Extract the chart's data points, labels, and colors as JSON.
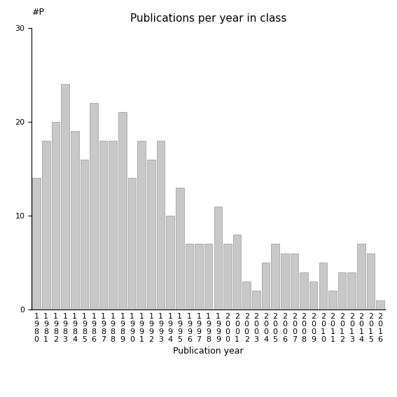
{
  "title": "Publications per year in class",
  "xlabel": "Publication year",
  "ylabel_text": "#P",
  "bar_color": "#c8c8c8",
  "bar_edge_color": "#999999",
  "ylim": [
    0,
    30
  ],
  "yticks": [
    0,
    10,
    20,
    30
  ],
  "years": [
    "1980",
    "1981",
    "1982",
    "1983",
    "1984",
    "1985",
    "1986",
    "1987",
    "1988",
    "1989",
    "1990",
    "1991",
    "1992",
    "1993",
    "1994",
    "1995",
    "1996",
    "1997",
    "1998",
    "1999",
    "2000",
    "2001",
    "2002",
    "2003",
    "2004",
    "2005",
    "2006",
    "2007",
    "2008",
    "2009",
    "2010",
    "2011",
    "2012",
    "2013",
    "2014",
    "2015",
    "2016"
  ],
  "values": [
    14,
    18,
    20,
    24,
    19,
    16,
    22,
    18,
    18,
    21,
    14,
    18,
    16,
    18,
    10,
    13,
    7,
    7,
    7,
    11,
    7,
    8,
    3,
    2,
    5,
    7,
    6,
    6,
    4,
    3,
    5,
    2,
    4,
    4,
    7,
    6,
    1
  ],
  "title_fontsize": 11,
  "tick_fontsize": 8,
  "xlabel_fontsize": 9,
  "ylabel_fontsize": 9
}
